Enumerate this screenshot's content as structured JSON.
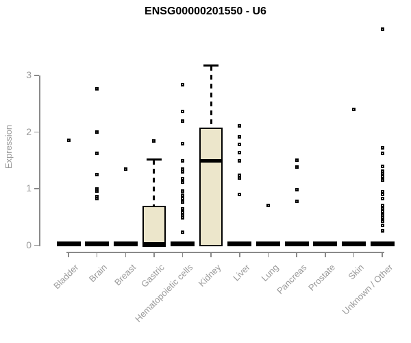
{
  "chart_data": {
    "type": "boxplot",
    "title": "ENSG00000201550 - U6",
    "ylabel": "Expression",
    "xlabel": "",
    "yticks": [
      0,
      1,
      2,
      3
    ],
    "ylim": [
      0,
      3.95
    ],
    "grid": false,
    "legend": "none",
    "categories": [
      "Bladder",
      "Brain",
      "Breast",
      "Gastric",
      "Hematopoietic cells",
      "Kidney",
      "Liver",
      "Lung",
      "Pancreas",
      "Prostate",
      "Skin",
      "Unknown / Other"
    ],
    "boxes": [
      {
        "category": "Bladder",
        "whisker_low": 0,
        "q1": 0,
        "median": 0,
        "q3": 0,
        "whisker_high": 0,
        "outliers": [
          1.86
        ]
      },
      {
        "category": "Brain",
        "whisker_low": 0,
        "q1": 0,
        "median": 0,
        "q3": 0,
        "whisker_high": 0,
        "outliers": [
          2.76,
          2.0,
          1.62,
          1.25,
          1.0,
          0.96,
          0.86,
          0.83
        ]
      },
      {
        "category": "Breast",
        "whisker_low": 0,
        "q1": 0,
        "median": 0,
        "q3": 0,
        "whisker_high": 0,
        "outliers": [
          1.35
        ]
      },
      {
        "category": "Gastric",
        "whisker_low": 0,
        "q1": 0,
        "median": 0.02,
        "q3": 0.7,
        "whisker_high": 1.51,
        "outliers": [
          1.84
        ]
      },
      {
        "category": "Hematopoietic cells",
        "whisker_low": 0,
        "q1": 0,
        "median": 0,
        "q3": 0,
        "whisker_high": 0,
        "outliers": [
          2.84,
          2.36,
          2.2,
          1.79,
          1.49,
          1.35,
          1.3,
          1.18,
          1.12,
          0.96,
          0.88,
          0.82,
          0.76,
          0.64,
          0.58,
          0.53,
          0.48,
          0.23
        ]
      },
      {
        "category": "Kidney",
        "whisker_low": 0,
        "q1": 0,
        "median": 1.49,
        "q3": 2.08,
        "whisker_high": 3.17,
        "outliers": []
      },
      {
        "category": "Liver",
        "whisker_low": 0,
        "q1": 0,
        "median": 0,
        "q3": 0,
        "whisker_high": 0,
        "outliers": [
          2.11,
          1.92,
          1.78,
          1.64,
          1.49,
          1.24,
          1.19,
          0.9
        ]
      },
      {
        "category": "Lung",
        "whisker_low": 0,
        "q1": 0,
        "median": 0,
        "q3": 0,
        "whisker_high": 0,
        "outliers": [
          0.7
        ]
      },
      {
        "category": "Pancreas",
        "whisker_low": 0,
        "q1": 0,
        "median": 0,
        "q3": 0,
        "whisker_high": 0,
        "outliers": [
          1.5,
          1.38,
          0.98,
          0.78
        ]
      },
      {
        "category": "Prostate",
        "whisker_low": 0,
        "q1": 0,
        "median": 0,
        "q3": 0,
        "whisker_high": 0,
        "outliers": []
      },
      {
        "category": "Skin",
        "whisker_low": 0,
        "q1": 0,
        "median": 0,
        "q3": 0,
        "whisker_high": 0,
        "outliers": [
          2.4
        ]
      },
      {
        "category": "Unknown / Other",
        "whisker_low": 0,
        "q1": 0,
        "median": 0,
        "q3": 0,
        "whisker_high": 0,
        "outliers": [
          3.82,
          1.72,
          1.62,
          1.39,
          1.31,
          1.26,
          1.21,
          1.15,
          0.94,
          0.9,
          0.83,
          0.7,
          0.64,
          0.59,
          0.53,
          0.48,
          0.43,
          0.35,
          0.26
        ]
      }
    ],
    "colors": {
      "box_fill": "#ECE6CB",
      "box_border": "#000000",
      "median": "#000000",
      "outlier": "#000000",
      "axis": "#8A8A8A",
      "tick_label": "#999999",
      "title": "#000000"
    }
  }
}
